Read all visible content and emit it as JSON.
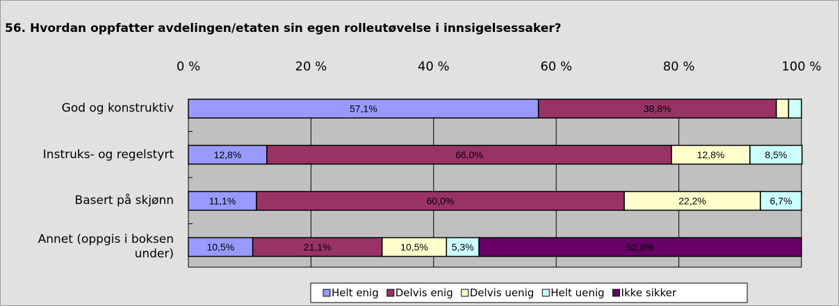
{
  "chart_data": {
    "type": "stacked_barh",
    "title": "56. Hvordan oppfatter avdelingen/etaten sin egen rolleutøvelse i innsigelsessaker?",
    "categories": [
      "God og konstruktiv",
      "Instruks- og regelstyrt",
      "Basert på skjønn",
      "Annet (oppgis i boksen under)"
    ],
    "series": [
      {
        "name": "Helt enig",
        "color": "#9999ff",
        "values": [
          57.1,
          12.8,
          11.1,
          10.5
        ],
        "value_labels": [
          "57,1%",
          "12,8%",
          "11,1%",
          "10,5%"
        ]
      },
      {
        "name": "Delvis enig",
        "color": "#993366",
        "values": [
          38.8,
          66.0,
          60.0,
          21.1
        ],
        "value_labels": [
          "38,8%",
          "66,0%",
          "60,0%",
          "21,1%"
        ]
      },
      {
        "name": "Delvis uenig",
        "color": "#ffffcc",
        "values": [
          2.0,
          12.8,
          22.2,
          10.5
        ],
        "value_labels": [
          null,
          "12,8%",
          "22,2%",
          "10,5%"
        ]
      },
      {
        "name": "Helt uenig",
        "color": "#ccffff",
        "values": [
          2.1,
          8.5,
          6.7,
          5.3
        ],
        "value_labels": [
          null,
          "8,5%",
          "6,7%",
          "5,3%"
        ]
      },
      {
        "name": "Ikke sikker",
        "color": "#660066",
        "values": [
          0,
          0,
          0,
          52.6
        ],
        "value_labels": [
          null,
          null,
          null,
          "52,6%"
        ]
      }
    ],
    "xlim": [
      0,
      100
    ],
    "xticks": [
      {
        "value": 0,
        "label": "0 %"
      },
      {
        "value": 20,
        "label": "20 %"
      },
      {
        "value": 40,
        "label": "40 %"
      },
      {
        "value": 60,
        "label": "60 %"
      },
      {
        "value": 80,
        "label": "80 %"
      },
      {
        "value": 100,
        "label": "100 %"
      }
    ],
    "grid": true,
    "legend": "bottom"
  }
}
